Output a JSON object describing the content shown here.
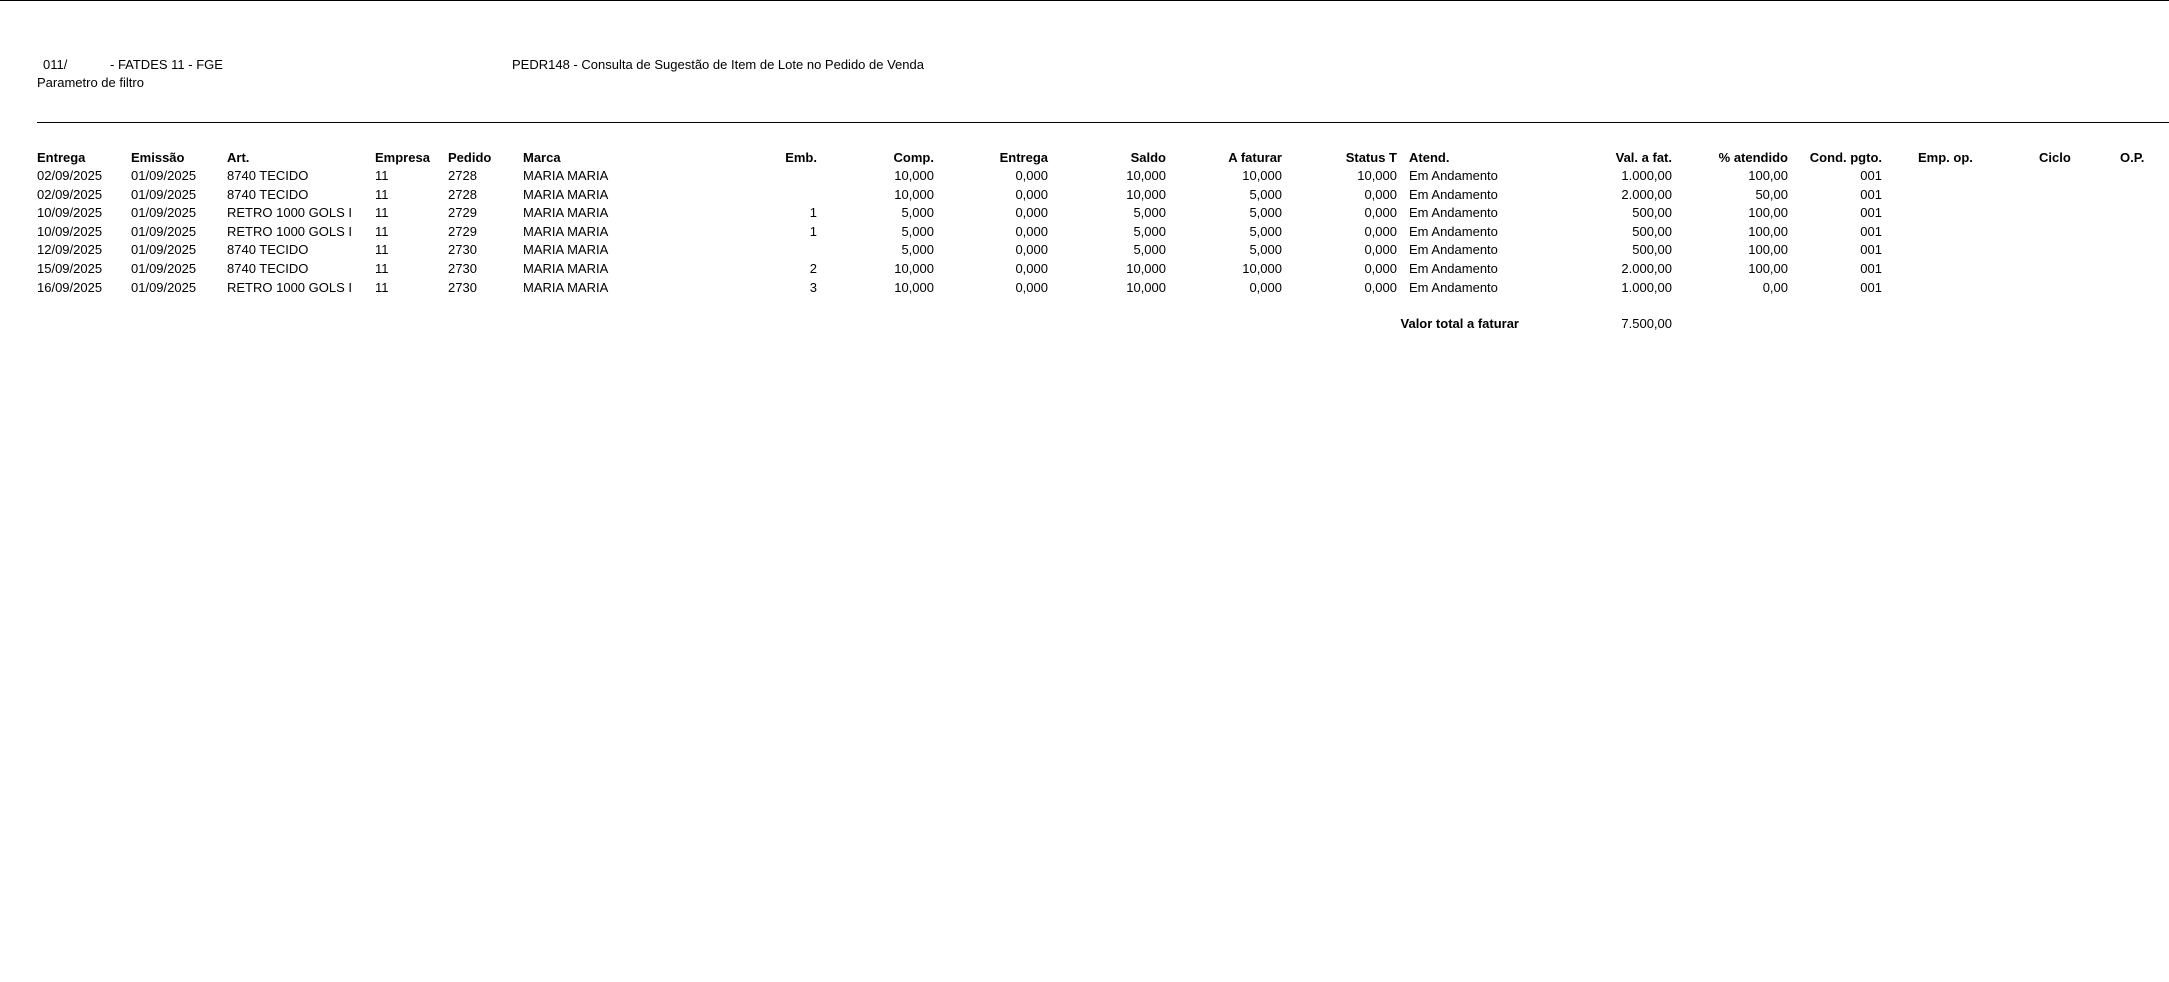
{
  "header": {
    "company_code": "011/",
    "company_name": "- FATDES 11 - FGE",
    "report_title": "PEDR148 - Consulta de Sugestão de Item de Lote no Pedido de Venda",
    "filter_label": "Parametro de filtro"
  },
  "columns": [
    "Entrega",
    "Emissão",
    "Art.",
    "Empresa",
    "Pedido",
    "Marca",
    "Emb.",
    "Comp.",
    "Entrega",
    "Saldo",
    "A faturar",
    "Status T",
    "Atend.",
    "Val. a fat.",
    "% atendido",
    "Cond. pgto.",
    "Emp. op.",
    "Ciclo",
    "O.P."
  ],
  "rows": [
    [
      "02/09/2025",
      "01/09/2025",
      "8740 TECIDO",
      "11",
      "2728",
      "MARIA MARIA",
      "",
      "10,000",
      "0,000",
      "10,000",
      "10,000",
      "10,000",
      "Em Andamento",
      "1.000,00",
      "100,00",
      "001",
      "",
      "",
      ""
    ],
    [
      "02/09/2025",
      "01/09/2025",
      "8740 TECIDO",
      "11",
      "2728",
      "MARIA MARIA",
      "",
      "10,000",
      "0,000",
      "10,000",
      "5,000",
      "0,000",
      "Em Andamento",
      "2.000,00",
      "50,00",
      "001",
      "",
      "",
      ""
    ],
    [
      "10/09/2025",
      "01/09/2025",
      "RETRO 1000 GOLS I",
      "11",
      "2729",
      "MARIA MARIA",
      "1",
      "5,000",
      "0,000",
      "5,000",
      "5,000",
      "0,000",
      "Em Andamento",
      "500,00",
      "100,00",
      "001",
      "",
      "",
      ""
    ],
    [
      "10/09/2025",
      "01/09/2025",
      "RETRO 1000 GOLS I",
      "11",
      "2729",
      "MARIA MARIA",
      "1",
      "5,000",
      "0,000",
      "5,000",
      "5,000",
      "0,000",
      "Em Andamento",
      "500,00",
      "100,00",
      "001",
      "",
      "",
      ""
    ],
    [
      "12/09/2025",
      "01/09/2025",
      "8740 TECIDO",
      "11",
      "2730",
      "MARIA MARIA",
      "",
      "5,000",
      "0,000",
      "5,000",
      "5,000",
      "0,000",
      "Em Andamento",
      "500,00",
      "100,00",
      "001",
      "",
      "",
      ""
    ],
    [
      "15/09/2025",
      "01/09/2025",
      "8740 TECIDO",
      "11",
      "2730",
      "MARIA MARIA",
      "2",
      "10,000",
      "0,000",
      "10,000",
      "10,000",
      "0,000",
      "Em Andamento",
      "2.000,00",
      "100,00",
      "001",
      "",
      "",
      ""
    ],
    [
      "16/09/2025",
      "01/09/2025",
      "RETRO 1000 GOLS I",
      "11",
      "2730",
      "MARIA MARIA",
      "3",
      "10,000",
      "0,000",
      "10,000",
      "0,000",
      "0,000",
      "Em Andamento",
      "1.000,00",
      "0,00",
      "001",
      "",
      "",
      ""
    ]
  ],
  "total": {
    "label": "Valor total a faturar",
    "value": "7.500,00"
  }
}
